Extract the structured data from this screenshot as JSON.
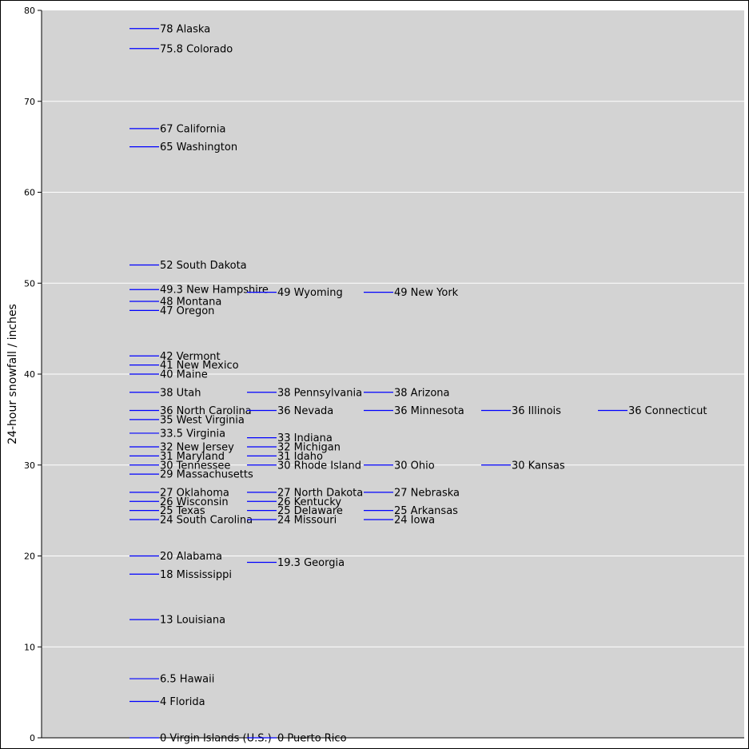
{
  "chart_data": {
    "type": "scatter",
    "title": "",
    "xlabel": "",
    "ylabel": "24-hour snowfall / inches",
    "ylim": [
      0,
      80
    ],
    "yticks": [
      0,
      10,
      20,
      30,
      40,
      50,
      60,
      70,
      80
    ],
    "grid": true,
    "colors": {
      "plot_background": "#d3d3d3",
      "marker": "#0000ff",
      "grid": "#ffffff"
    },
    "columns": [
      [
        {
          "state": "Alaska",
          "value": 78,
          "label": "78 Alaska"
        },
        {
          "state": "Colorado",
          "value": 75.8,
          "label": "75.8 Colorado"
        },
        {
          "state": "California",
          "value": 67,
          "label": "67 California"
        },
        {
          "state": "Washington",
          "value": 65,
          "label": "65 Washington"
        },
        {
          "state": "South Dakota",
          "value": 52,
          "label": "52 South Dakota"
        },
        {
          "state": "New Hampshire",
          "value": 49.3,
          "label": "49.3 New Hampshire"
        },
        {
          "state": "Montana",
          "value": 48,
          "label": "48 Montana"
        },
        {
          "state": "Oregon",
          "value": 47,
          "label": "47 Oregon"
        },
        {
          "state": "Vermont",
          "value": 42,
          "label": "42 Vermont"
        },
        {
          "state": "New Mexico",
          "value": 41,
          "label": "41 New Mexico"
        },
        {
          "state": "Maine",
          "value": 40,
          "label": "40 Maine"
        },
        {
          "state": "Utah",
          "value": 38,
          "label": "38 Utah"
        },
        {
          "state": "North Carolina",
          "value": 36,
          "label": "36 North Carolina"
        },
        {
          "state": "West Virginia",
          "value": 35,
          "label": "35 West Virginia"
        },
        {
          "state": "Virginia",
          "value": 33.5,
          "label": "33.5 Virginia"
        },
        {
          "state": "New Jersey",
          "value": 32,
          "label": "32 New Jersey"
        },
        {
          "state": "Maryland",
          "value": 31,
          "label": "31 Maryland"
        },
        {
          "state": "Tennessee",
          "value": 30,
          "label": "30 Tennessee"
        },
        {
          "state": "Massachusetts",
          "value": 29,
          "label": "29 Massachusetts"
        },
        {
          "state": "Oklahoma",
          "value": 27,
          "label": "27 Oklahoma"
        },
        {
          "state": "Wisconsin",
          "value": 26,
          "label": "26 Wisconsin"
        },
        {
          "state": "Texas",
          "value": 25,
          "label": "25 Texas"
        },
        {
          "state": "South Carolina",
          "value": 24,
          "label": "24 South Carolina"
        },
        {
          "state": "Alabama",
          "value": 20,
          "label": "20 Alabama"
        },
        {
          "state": "Mississippi",
          "value": 18,
          "label": "18 Mississippi"
        },
        {
          "state": "Louisiana",
          "value": 13,
          "label": "13 Louisiana"
        },
        {
          "state": "Hawaii",
          "value": 6.5,
          "label": "6.5 Hawaii"
        },
        {
          "state": "Florida",
          "value": 4,
          "label": "4 Florida"
        },
        {
          "state": "Virgin Islands (U.S.)",
          "value": 0,
          "label": "0 Virgin Islands (U.S.)"
        }
      ],
      [
        {
          "state": "Wyoming",
          "value": 49,
          "label": "49 Wyoming"
        },
        {
          "state": "Pennsylvania",
          "value": 38,
          "label": "38 Pennsylvania"
        },
        {
          "state": "Nevada",
          "value": 36,
          "label": "36 Nevada"
        },
        {
          "state": "Indiana",
          "value": 33,
          "label": "33 Indiana"
        },
        {
          "state": "Michigan",
          "value": 32,
          "label": "32 Michigan"
        },
        {
          "state": "Idaho",
          "value": 31,
          "label": "31 Idaho"
        },
        {
          "state": "Rhode Island",
          "value": 30,
          "label": "30 Rhode Island"
        },
        {
          "state": "North Dakota",
          "value": 27,
          "label": "27 North Dakota"
        },
        {
          "state": "Kentucky",
          "value": 26,
          "label": "26 Kentucky"
        },
        {
          "state": "Delaware",
          "value": 25,
          "label": "25 Delaware"
        },
        {
          "state": "Missouri",
          "value": 24,
          "label": "24 Missouri"
        },
        {
          "state": "Georgia",
          "value": 19.3,
          "label": "19.3 Georgia"
        },
        {
          "state": "Puerto Rico",
          "value": 0,
          "label": "0 Puerto Rico"
        }
      ],
      [
        {
          "state": "New York",
          "value": 49,
          "label": "49 New York"
        },
        {
          "state": "Arizona",
          "value": 38,
          "label": "38 Arizona"
        },
        {
          "state": "Minnesota",
          "value": 36,
          "label": "36 Minnesota"
        },
        {
          "state": "Ohio",
          "value": 30,
          "label": "30 Ohio"
        },
        {
          "state": "Nebraska",
          "value": 27,
          "label": "27 Nebraska"
        },
        {
          "state": "Arkansas",
          "value": 25,
          "label": "25 Arkansas"
        },
        {
          "state": "Iowa",
          "value": 24,
          "label": "24 Iowa"
        }
      ],
      [
        {
          "state": "Illinois",
          "value": 36,
          "label": "36 Illinois"
        },
        {
          "state": "Kansas",
          "value": 30,
          "label": "30 Kansas"
        }
      ],
      [
        {
          "state": "Connecticut",
          "value": 36,
          "label": "36 Connecticut"
        }
      ]
    ]
  }
}
